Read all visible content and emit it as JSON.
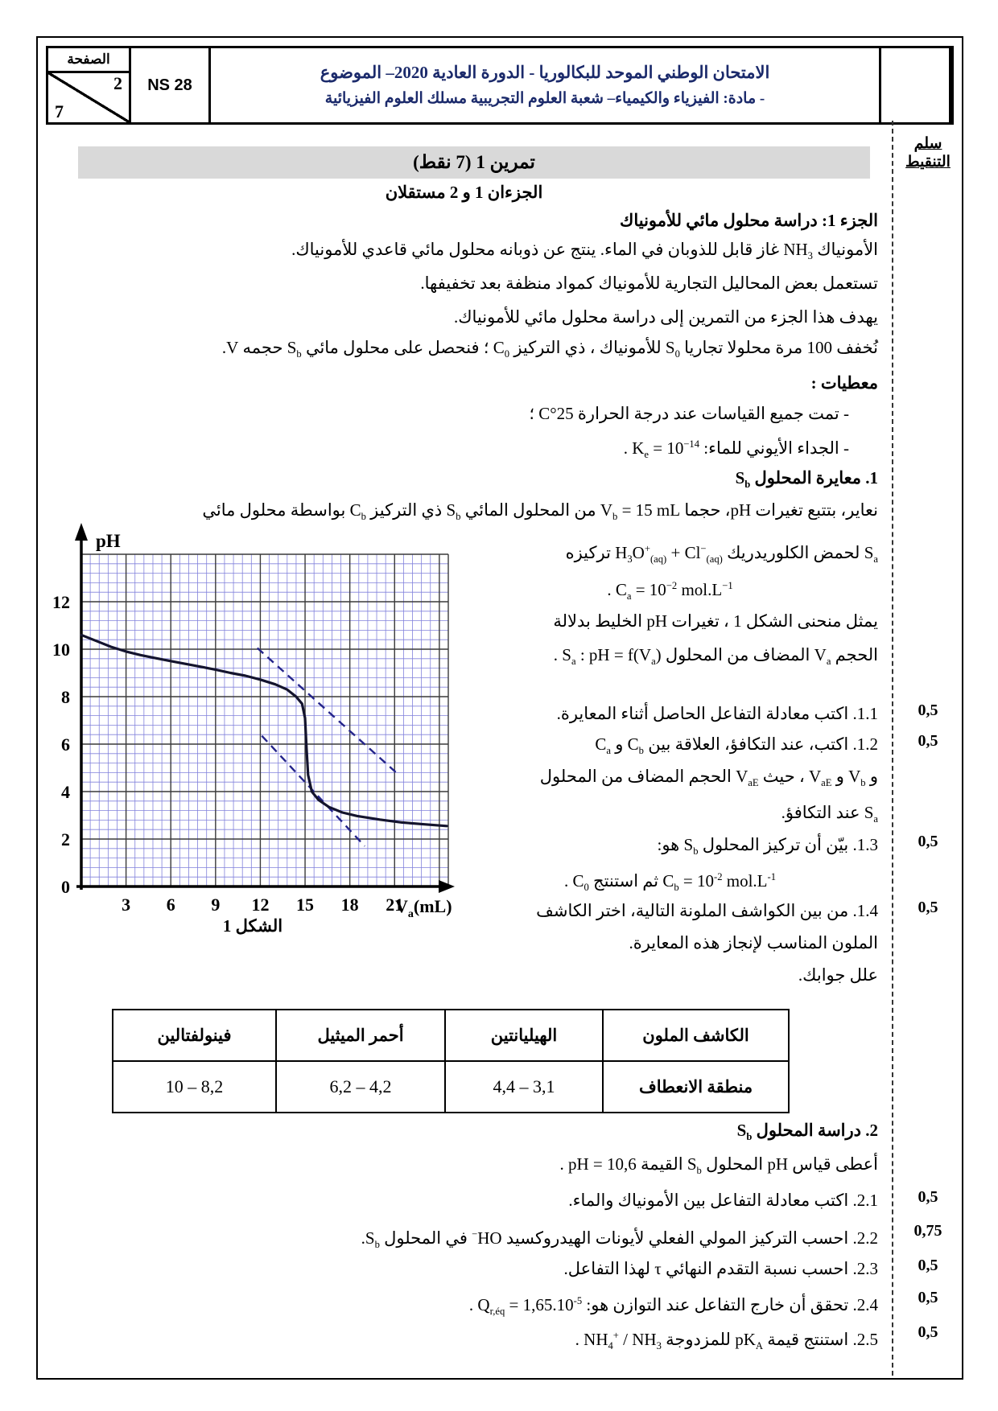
{
  "header": {
    "page_label": "الصفحة",
    "page_current": "2",
    "page_total": "7",
    "exam_code": "NS 28",
    "title_line1": "الامتحان الوطني الموحد للبكالوريا - الدورة العادية 2020– الموضوع",
    "title_line2": "- مادة: الفيزياء والكيمياء– شعبة العلوم التجريبية مسلك العلوم الفيزيائية"
  },
  "margin": {
    "scale_line1": "سلم",
    "scale_line2": "التنقيط"
  },
  "exercise": {
    "banner": "تمرين 1 (7 نقط)",
    "independent": "الجزءان 1 و 2 مستقلان",
    "part1_title": "الجزء 1: دراسة محلول مائي للأمونياك",
    "p1": "الأمونياك NH<sub>3</sub> غاز قابل للذوبان في الماء. ينتج عن ذوبانه محلول مائي قاعدي للأمونياك.",
    "p2": "تستعمل بعض المحاليل التجارية للأمونياك كمواد منظفة بعد تخفيفها.",
    "p3": "يهدف هذا الجزء من التمرين إلى دراسة محلول مائي للأمونياك.",
    "p4": "نُخفف 100 مرة محلولا تجاريا S<sub>0</sub> للأمونياك ، ذي التركيز C<sub>0</sub> ؛ فنحصل على محلول مائي S<sub>b</sub> حجمه V.",
    "data_heading": "معطيات :",
    "d1": "- تمت جميع القياسات عند درجة الحرارة 25°C ؛",
    "d2": "- الجداء الأيوني للماء: K<sub>e</sub> = 10<sup>−14</sup> .",
    "s1_title": "1. معايرة المحلول S<sub>b</sub>",
    "s1_intro": "نعاير، بتتبع تغيرات pH، حجما V<sub>b</sub> = 15 mL من المحلول المائي S<sub>b</sub> ذي التركيز C<sub>b</sub> بواسطة محلول مائي",
    "rc1": "S<sub>a</sub> لحمض الكلوريدريك H<sub>3</sub>O<sup>+</sup><sub>(aq)</sub> + Cl<sup>−</sup><sub>(aq)</sub> تركيزه",
    "rc2": "C<sub>a</sub> = 10<sup>−2</sup> mol.L<sup>−1</sup> .",
    "rc3": "يمثل منحنى الشكل 1 ، تغيرات pH الخليط بدلالة",
    "rc4": "الحجم V<sub>a</sub> المضاف من المحلول S<sub>a</sub> : pH = f(V<sub>a</sub>) .",
    "q11": "1.1. اكتب معادلة التفاعل الحاصل أثناء المعايرة.",
    "q12": "1.2. اكتب، عند التكافؤ، العلاقة بين C<sub>b</sub> و C<sub>a</sub>",
    "q12b": "و V<sub>b</sub> و V<sub>aE</sub> ، حيث V<sub>aE</sub> الحجم المضاف من المحلول",
    "q12c": "S<sub>a</sub> عند التكافؤ.",
    "q13": "1.3. بيّن أن تركيز المحلول S<sub>b</sub> هو:",
    "q13b": "C<sub>b</sub> = 10<sup>-2</sup> mol.L<sup>-1</sup> ثم استنتج C<sub>0</sub> .",
    "q14": "1.4. من بين الكواشف الملونة التالية، اختر الكاشف",
    "q14b": "الملون المناسب لإنجاز هذه المعايرة.",
    "q14c": "علل جوابك.",
    "s2_title": "2. دراسة المحلول S<sub>b</sub>",
    "s2_p1": "أعطى قياس pH المحلول S<sub>b</sub> القيمة pH = 10,6 .",
    "q21": "2.1. اكتب معادلة التفاعل بين الأمونياك والماء.",
    "q22": "2.2. احسب التركيز المولي الفعلي لأيونات الهيدروكسيد HO<sup>−</sup> في المحلول S<sub>b</sub>.",
    "q23": "2.3. احسب نسبة التقدم النهائي τ لهذا التفاعل.",
    "q24": "2.4. تحقق أن خارج التفاعل عند التوازن هو: Q<sub>r,éq</sub> = 1,65.10<sup>-5</sup> .",
    "q25": "2.5. استنتج قيمة pK<sub>A</sub> للمزدوجة NH<sub>4</sub><sup>+</sup> / NH<sub>3</sub> ."
  },
  "grades": [
    "0,5",
    "0,5",
    "0,5",
    "0,5",
    "0,5",
    "0,75",
    "0,5",
    "0,5",
    "0,5"
  ],
  "indicator_table": {
    "headers": [
      "الكاشف الملون",
      "الهيليانتين",
      "أحمر الميثيل",
      "فينولفتالين"
    ],
    "row_label": "منطقة الانعطاف",
    "row_values": [
      "3,1 – 4,4",
      "4,2 – 6,2",
      "8,2 – 10"
    ]
  },
  "chart_data": {
    "type": "line",
    "caption": "الشكل 1",
    "ylabel": "pH",
    "xlabel_parts": [
      "V",
      "a",
      "(mL)"
    ],
    "xlim": [
      0,
      24.6
    ],
    "ylim": [
      0,
      14
    ],
    "x_ticks": [
      3,
      6,
      9,
      12,
      15,
      18,
      21
    ],
    "y_ticks": [
      0,
      2,
      4,
      6,
      8,
      10,
      12
    ],
    "x_major_step": 3,
    "y_major_step": 2,
    "x_minor_step": 0.6,
    "y_minor_step": 0.4,
    "curve": [
      [
        0,
        10.6
      ],
      [
        1,
        10.35
      ],
      [
        2,
        10.1
      ],
      [
        3,
        9.9
      ],
      [
        4,
        9.75
      ],
      [
        5,
        9.62
      ],
      [
        6,
        9.5
      ],
      [
        7,
        9.38
      ],
      [
        8,
        9.26
      ],
      [
        9,
        9.14
      ],
      [
        10,
        9.0
      ],
      [
        11,
        8.88
      ],
      [
        12,
        8.72
      ],
      [
        13,
        8.52
      ],
      [
        13.8,
        8.3
      ],
      [
        14.4,
        8.0
      ],
      [
        14.8,
        7.7
      ],
      [
        15.0,
        7.1
      ],
      [
        15.1,
        5.8
      ],
      [
        15.2,
        4.7
      ],
      [
        15.45,
        4.0
      ],
      [
        15.9,
        3.65
      ],
      [
        16.6,
        3.35
      ],
      [
        17.5,
        3.12
      ],
      [
        18.5,
        2.97
      ],
      [
        20,
        2.82
      ],
      [
        21.5,
        2.7
      ],
      [
        23,
        2.62
      ],
      [
        24.5,
        2.55
      ]
    ],
    "tangents": [
      [
        [
          11.8,
          10.05
        ],
        [
          21.2,
          4.75
        ]
      ],
      [
        [
          12.1,
          6.35
        ],
        [
          19.0,
          1.7
        ]
      ]
    ],
    "equivalence_x_label": "15",
    "colors": {
      "minor_grid": "#8282dc",
      "major_grid": "#3a3a3a",
      "curve": "#14142e",
      "tangent": "#24248a",
      "axis": "#000000"
    }
  }
}
